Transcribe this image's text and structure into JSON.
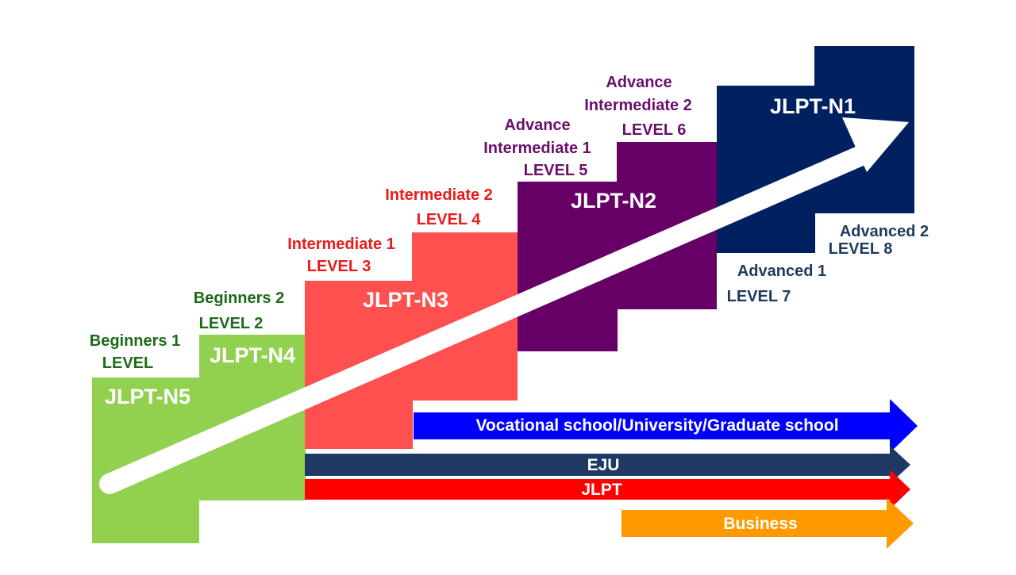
{
  "colors": {
    "beginner_green": "#1a6b1a",
    "intermediate_red": "#e81c1c",
    "advance_purple": "#6b0f6b",
    "advanced_navy": "#1f3a5f"
  },
  "blocks": [
    {
      "label": "JLPT-N5",
      "color": "#92d050"
    },
    {
      "label": "JLPT-N4",
      "color": "#92d050"
    },
    {
      "label": "JLPT-N3",
      "color": "#ff5050"
    },
    {
      "label": "JLPT-N2",
      "color": "#660066"
    },
    {
      "label": "JLPT-N1",
      "color": "#002060"
    }
  ],
  "level_labels": {
    "beginners1": {
      "line1": "Beginners 1",
      "line2": "LEVEL"
    },
    "beginners2": {
      "line1": "Beginners 2",
      "line2": "LEVEL 2"
    },
    "intermediate1": {
      "line1": "Intermediate 1",
      "line2": "LEVEL 3"
    },
    "intermediate2": {
      "line1": "Intermediate 2",
      "line2": "LEVEL 4"
    },
    "advance_intermediate1": {
      "line1": "Advance",
      "line2": "Intermediate 1",
      "line3": "LEVEL 5"
    },
    "advance_intermediate2": {
      "line1": "Advance",
      "line2": "Intermediate 2",
      "line3": "LEVEL 6"
    },
    "advanced1": {
      "line1": "Advanced 1",
      "line2": "LEVEL 7"
    },
    "advanced2": {
      "line1": "Advanced 2",
      "line2": "LEVEL 8"
    }
  },
  "bars": [
    {
      "label": "Vocational school/University/Graduate school",
      "color": "#0000ff"
    },
    {
      "label": "EJU",
      "color": "#1f3864"
    },
    {
      "label": "JLPT",
      "color": "#ff0000"
    },
    {
      "label": "Business",
      "color": "#ff9900"
    }
  ]
}
